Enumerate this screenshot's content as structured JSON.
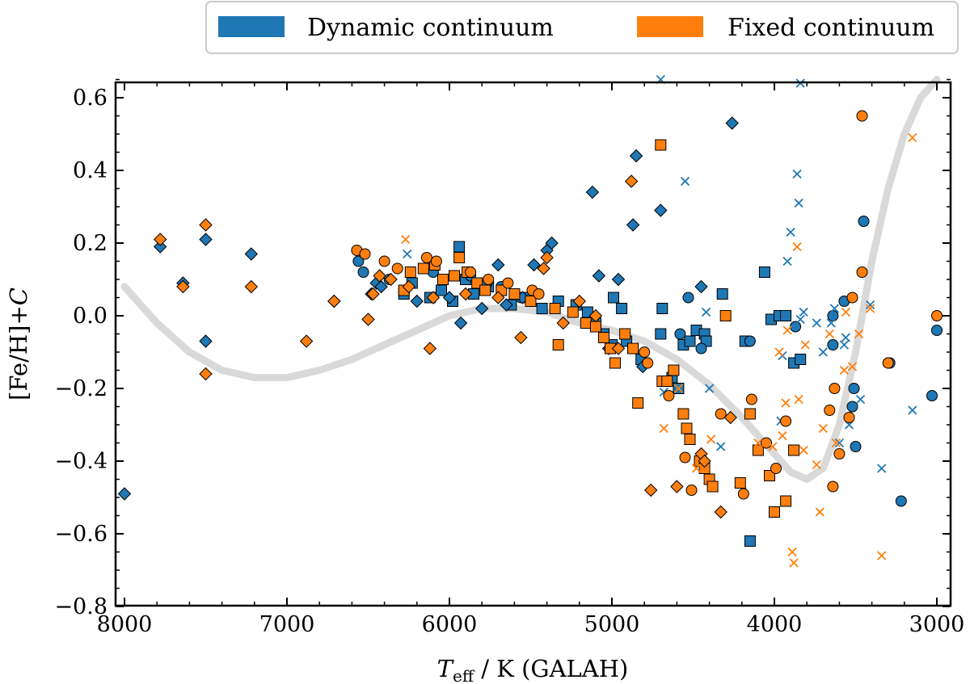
{
  "chart_data": {
    "type": "scatter",
    "xlabel_main": "T",
    "xlabel_sub": "eff",
    "xlabel_rest": " / K (GALAH)",
    "ylabel_main": "[Fe/H]+",
    "ylabel_italic": "C",
    "xlim": [
      8050,
      2900
    ],
    "ylim": [
      -0.8,
      0.65
    ],
    "x_ticks": [
      8000,
      7000,
      6000,
      5000,
      4000,
      3000
    ],
    "x_tick_labels": [
      "8000",
      "7000",
      "6000",
      "5000",
      "4000",
      "3000"
    ],
    "y_ticks": [
      0.6,
      0.4,
      0.2,
      0.0,
      -0.2,
      -0.4,
      -0.6,
      -0.8
    ],
    "y_tick_labels": [
      "0.6",
      "0.4",
      "0.2",
      "0.0",
      "−0.2",
      "−0.4",
      "−0.6",
      "−0.8"
    ],
    "legend": {
      "position": "top-right",
      "entries": [
        {
          "label": "Dynamic continuum",
          "color": "#1f77b4"
        },
        {
          "label": "Fixed continuum",
          "color": "#ff7f0e"
        }
      ]
    },
    "trend_curve": {
      "color": "#d9d9d9",
      "points": [
        [
          8000,
          0.08
        ],
        [
          7800,
          -0.02
        ],
        [
          7600,
          -0.1
        ],
        [
          7400,
          -0.15
        ],
        [
          7200,
          -0.17
        ],
        [
          7000,
          -0.17
        ],
        [
          6800,
          -0.15
        ],
        [
          6600,
          -0.12
        ],
        [
          6400,
          -0.08
        ],
        [
          6200,
          -0.04
        ],
        [
          6000,
          0.0
        ],
        [
          5800,
          0.02
        ],
        [
          5600,
          0.02
        ],
        [
          5400,
          0.01
        ],
        [
          5200,
          -0.02
        ],
        [
          5000,
          -0.04
        ],
        [
          4800,
          -0.07
        ],
        [
          4600,
          -0.12
        ],
        [
          4400,
          -0.19
        ],
        [
          4200,
          -0.28
        ],
        [
          4000,
          -0.38
        ],
        [
          3900,
          -0.43
        ],
        [
          3800,
          -0.45
        ],
        [
          3700,
          -0.42
        ],
        [
          3600,
          -0.3
        ],
        [
          3500,
          -0.1
        ],
        [
          3400,
          0.15
        ],
        [
          3300,
          0.35
        ],
        [
          3200,
          0.5
        ],
        [
          3100,
          0.6
        ],
        [
          3000,
          0.65
        ]
      ]
    },
    "series": [
      {
        "name": "Dynamic continuum",
        "color": "#1f77b4",
        "diamond": [
          [
            8000,
            -0.49
          ],
          [
            7780,
            0.19
          ],
          [
            7640,
            0.09
          ],
          [
            7500,
            0.21
          ],
          [
            7500,
            -0.07
          ],
          [
            7220,
            0.17
          ],
          [
            6710,
            0.04
          ],
          [
            6480,
            0.06
          ],
          [
            6450,
            0.09
          ],
          [
            6420,
            0.08
          ],
          [
            5930,
            -0.02
          ],
          [
            5700,
            0.14
          ],
          [
            5480,
            0.14
          ],
          [
            5400,
            0.18
          ],
          [
            5370,
            0.2
          ],
          [
            5120,
            0.34
          ],
          [
            5080,
            0.11
          ],
          [
            4960,
            0.1
          ],
          [
            4870,
            0.25
          ],
          [
            4850,
            0.44
          ],
          [
            4700,
            0.29
          ],
          [
            4450,
            0.08
          ],
          [
            4260,
            0.53
          ],
          [
            4810,
            -0.14
          ],
          [
            5020,
            -0.09
          ],
          [
            5550,
            0.05
          ],
          [
            5650,
            0.03
          ],
          [
            5800,
            0.02
          ],
          [
            6000,
            0.05
          ],
          [
            6200,
            0.04
          ]
        ],
        "square": [
          [
            6280,
            0.06
          ],
          [
            6230,
            0.09
          ],
          [
            6120,
            0.05
          ],
          [
            6050,
            0.07
          ],
          [
            5980,
            0.04
          ],
          [
            5940,
            0.19
          ],
          [
            5900,
            0.1
          ],
          [
            5850,
            0.06
          ],
          [
            5760,
            0.08
          ],
          [
            5620,
            0.03
          ],
          [
            5520,
            0.05
          ],
          [
            5430,
            0.02
          ],
          [
            5330,
            0.04
          ],
          [
            5220,
            0.03
          ],
          [
            5150,
            0.01
          ],
          [
            5100,
            -0.02
          ],
          [
            5050,
            -0.05
          ],
          [
            5000,
            -0.08
          ],
          [
            4990,
            0.05
          ],
          [
            4940,
            0.02
          ],
          [
            4910,
            -0.07
          ],
          [
            4870,
            -0.09
          ],
          [
            4820,
            -0.12
          ],
          [
            4700,
            -0.05
          ],
          [
            4690,
            0.02
          ],
          [
            4630,
            -0.17
          ],
          [
            4590,
            -0.2
          ],
          [
            4560,
            -0.08
          ],
          [
            4520,
            -0.07
          ],
          [
            4480,
            -0.04
          ],
          [
            4430,
            -0.05
          ],
          [
            4420,
            -0.07
          ],
          [
            4320,
            0.06
          ],
          [
            4180,
            -0.07
          ],
          [
            4150,
            -0.62
          ],
          [
            4060,
            0.12
          ],
          [
            4020,
            -0.01
          ],
          [
            3970,
            0.0
          ],
          [
            3930,
            0.0
          ],
          [
            3880,
            -0.13
          ],
          [
            3840,
            -0.12
          ]
        ],
        "circle": [
          [
            6560,
            0.15
          ],
          [
            6530,
            0.12
          ],
          [
            6370,
            0.1
          ],
          [
            6100,
            0.12
          ],
          [
            5870,
            0.11
          ],
          [
            5770,
            0.09
          ],
          [
            5680,
            0.08
          ],
          [
            5560,
            0.05
          ],
          [
            4580,
            -0.05
          ],
          [
            4530,
            0.05
          ],
          [
            4450,
            -0.09
          ],
          [
            4150,
            -0.07
          ],
          [
            3870,
            -0.03
          ],
          [
            3640,
            0.0
          ],
          [
            3640,
            -0.08
          ],
          [
            3570,
            0.04
          ],
          [
            3520,
            -0.25
          ],
          [
            3510,
            -0.2
          ],
          [
            3500,
            -0.36
          ],
          [
            3450,
            0.26
          ],
          [
            3290,
            -0.13
          ],
          [
            3220,
            -0.51
          ],
          [
            3030,
            -0.22
          ],
          [
            3000,
            -0.04
          ]
        ],
        "x": [
          [
            6260,
            0.17
          ],
          [
            4700,
            0.65
          ],
          [
            4550,
            0.37
          ],
          [
            4420,
            0.01
          ],
          [
            4400,
            -0.2
          ],
          [
            4330,
            -0.36
          ],
          [
            4680,
            -0.21
          ],
          [
            3960,
            -0.29
          ],
          [
            3950,
            -0.11
          ],
          [
            3920,
            0.15
          ],
          [
            3900,
            0.23
          ],
          [
            3860,
            0.39
          ],
          [
            3850,
            0.31
          ],
          [
            3840,
            0.64
          ],
          [
            3840,
            -0.01
          ],
          [
            3820,
            0.01
          ],
          [
            3740,
            -0.02
          ],
          [
            3700,
            -0.1
          ],
          [
            3650,
            -0.02
          ],
          [
            3630,
            0.02
          ],
          [
            3600,
            -0.35
          ],
          [
            3570,
            -0.08
          ],
          [
            3560,
            -0.06
          ],
          [
            3540,
            -0.3
          ],
          [
            3470,
            -0.23
          ],
          [
            3410,
            0.03
          ],
          [
            3340,
            -0.42
          ],
          [
            3150,
            -0.26
          ]
        ]
      },
      {
        "name": "Fixed continuum",
        "color": "#ff7f0e",
        "diamond": [
          [
            7780,
            0.21
          ],
          [
            7640,
            0.08
          ],
          [
            7500,
            0.25
          ],
          [
            7500,
            -0.16
          ],
          [
            7220,
            0.08
          ],
          [
            6880,
            -0.07
          ],
          [
            6710,
            0.04
          ],
          [
            6500,
            -0.01
          ],
          [
            6470,
            0.06
          ],
          [
            6430,
            0.11
          ],
          [
            6360,
            0.1
          ],
          [
            6120,
            -0.09
          ],
          [
            5560,
            -0.06
          ],
          [
            5420,
            0.13
          ],
          [
            5400,
            0.16
          ],
          [
            5200,
            0.04
          ],
          [
            4960,
            -0.09
          ],
          [
            4880,
            0.37
          ],
          [
            4760,
            -0.48
          ],
          [
            4600,
            -0.47
          ],
          [
            4450,
            -0.38
          ],
          [
            4430,
            -0.4
          ],
          [
            4330,
            -0.54
          ],
          [
            4270,
            -0.28
          ],
          [
            5100,
            0.0
          ],
          [
            5300,
            -0.02
          ],
          [
            5700,
            0.05
          ],
          [
            5900,
            0.06
          ],
          [
            6100,
            0.05
          ],
          [
            6250,
            0.08
          ]
        ],
        "square": [
          [
            6280,
            0.07
          ],
          [
            6240,
            0.12
          ],
          [
            6160,
            0.13
          ],
          [
            6090,
            0.14
          ],
          [
            6040,
            0.1
          ],
          [
            5970,
            0.11
          ],
          [
            5940,
            0.16
          ],
          [
            5890,
            0.12
          ],
          [
            5830,
            0.09
          ],
          [
            5780,
            0.07
          ],
          [
            5680,
            0.07
          ],
          [
            5600,
            0.06
          ],
          [
            5500,
            0.04
          ],
          [
            5350,
            0.02
          ],
          [
            5330,
            -0.08
          ],
          [
            5240,
            0.01
          ],
          [
            5160,
            -0.02
          ],
          [
            5100,
            -0.03
          ],
          [
            5050,
            -0.06
          ],
          [
            5010,
            -0.09
          ],
          [
            4980,
            -0.13
          ],
          [
            4920,
            -0.05
          ],
          [
            4870,
            -0.09
          ],
          [
            4840,
            -0.24
          ],
          [
            4700,
            0.47
          ],
          [
            4690,
            -0.18
          ],
          [
            4660,
            -0.18
          ],
          [
            4620,
            -0.15
          ],
          [
            4560,
            -0.27
          ],
          [
            4540,
            -0.31
          ],
          [
            4520,
            -0.34
          ],
          [
            4460,
            -0.4
          ],
          [
            4430,
            -0.42
          ],
          [
            4400,
            -0.45
          ],
          [
            4380,
            -0.47
          ],
          [
            4300,
            0.0
          ],
          [
            4210,
            -0.46
          ],
          [
            4150,
            -0.27
          ],
          [
            4100,
            -0.37
          ],
          [
            4030,
            -0.44
          ],
          [
            4000,
            -0.54
          ],
          [
            3930,
            -0.51
          ],
          [
            3880,
            -0.37
          ]
        ],
        "circle": [
          [
            6570,
            0.18
          ],
          [
            6520,
            0.17
          ],
          [
            6400,
            0.15
          ],
          [
            6320,
            0.13
          ],
          [
            6140,
            0.16
          ],
          [
            6080,
            0.15
          ],
          [
            5870,
            0.12
          ],
          [
            5760,
            0.1
          ],
          [
            5640,
            0.09
          ],
          [
            5490,
            0.07
          ],
          [
            5450,
            0.06
          ],
          [
            4800,
            -0.1
          ],
          [
            4780,
            -0.13
          ],
          [
            4650,
            -0.22
          ],
          [
            4550,
            -0.39
          ],
          [
            4510,
            -0.48
          ],
          [
            4330,
            -0.27
          ],
          [
            4190,
            -0.49
          ],
          [
            4140,
            -0.23
          ],
          [
            4050,
            -0.35
          ],
          [
            3990,
            -0.42
          ],
          [
            3930,
            -0.29
          ],
          [
            3660,
            -0.26
          ],
          [
            3630,
            -0.2
          ],
          [
            3640,
            -0.47
          ],
          [
            3600,
            -0.38
          ],
          [
            3540,
            -0.28
          ],
          [
            3520,
            0.05
          ],
          [
            3460,
            0.12
          ],
          [
            3460,
            0.55
          ],
          [
            3300,
            -0.13
          ],
          [
            3000,
            0.0
          ]
        ],
        "x": [
          [
            6270,
            0.21
          ],
          [
            4680,
            -0.31
          ],
          [
            4590,
            -0.2
          ],
          [
            4480,
            -0.42
          ],
          [
            4390,
            -0.34
          ],
          [
            4100,
            -0.35
          ],
          [
            4010,
            -0.36
          ],
          [
            3970,
            -0.1
          ],
          [
            3950,
            -0.33
          ],
          [
            3930,
            -0.24
          ],
          [
            3920,
            -0.04
          ],
          [
            3890,
            -0.65
          ],
          [
            3880,
            -0.68
          ],
          [
            3860,
            0.19
          ],
          [
            3850,
            -0.23
          ],
          [
            3820,
            -0.37
          ],
          [
            3810,
            -0.08
          ],
          [
            3740,
            -0.41
          ],
          [
            3720,
            -0.54
          ],
          [
            3700,
            -0.31
          ],
          [
            3660,
            -0.05
          ],
          [
            3620,
            -0.35
          ],
          [
            3570,
            -0.15
          ],
          [
            3560,
            0.01
          ],
          [
            3520,
            -0.14
          ],
          [
            3480,
            -0.05
          ],
          [
            3410,
            0.02
          ],
          [
            3340,
            -0.66
          ],
          [
            3150,
            0.49
          ]
        ]
      }
    ]
  }
}
